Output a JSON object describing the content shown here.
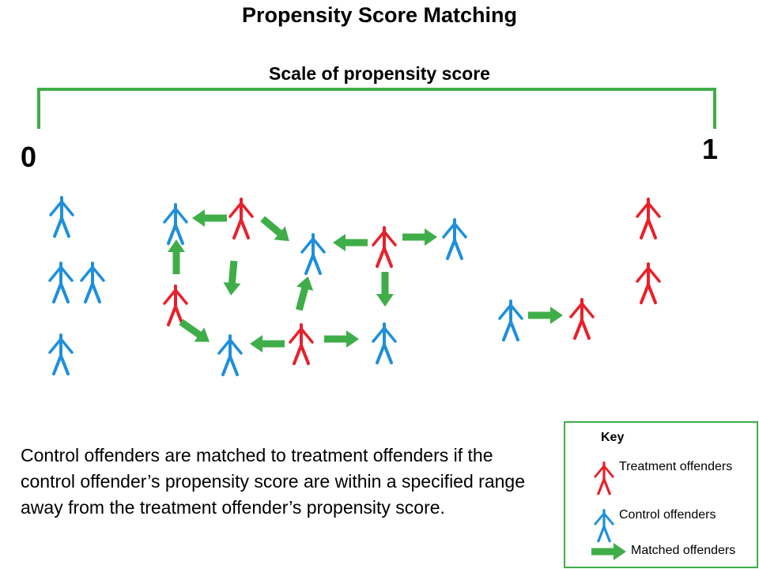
{
  "title": "Propensity Score Matching",
  "scale": {
    "label": "Scale of propensity score",
    "min_label": "0",
    "max_label": "1"
  },
  "description": "Control offenders are matched to treatment offenders if the control offender’s propensity score are within a specified range away from the treatment offender’s propensity score.",
  "key": {
    "title": "Key",
    "treatment": "Treatment offenders",
    "control": "Control offenders",
    "matched": "Matched offenders"
  },
  "colors": {
    "treatment": "#e8202a",
    "control": "#1e8fdc",
    "matched": "#3fae49",
    "scale_bar": "#3fae49"
  }
}
